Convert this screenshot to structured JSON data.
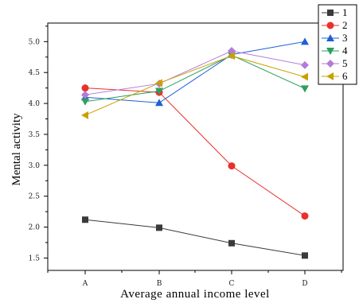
{
  "chart_data": {
    "type": "line",
    "xlabel": "Average annual income level",
    "ylabel": "Mental activity",
    "categories": [
      "A",
      "B",
      "C",
      "D"
    ],
    "ylim": [
      1.3,
      5.3
    ],
    "yticks": [
      "1.5",
      "2.0",
      "2.5",
      "3.0",
      "3.5",
      "4.0",
      "4.5",
      "5.0"
    ],
    "legend_position": "top-right",
    "series": [
      {
        "name": "1",
        "color": "#3a3a3a",
        "marker": "square",
        "values": [
          2.12,
          1.99,
          1.74,
          1.54
        ]
      },
      {
        "name": "2",
        "color": "#e8312b",
        "marker": "circle",
        "values": [
          4.25,
          4.18,
          2.99,
          2.18
        ]
      },
      {
        "name": "3",
        "color": "#1f5fd6",
        "marker": "triangle-up",
        "values": [
          4.1,
          4.01,
          4.79,
          5.0
        ]
      },
      {
        "name": "4",
        "color": "#2e9e5f",
        "marker": "triangle-down",
        "values": [
          4.03,
          4.2,
          4.78,
          4.24
        ]
      },
      {
        "name": "5",
        "color": "#b57bd9",
        "marker": "diamond",
        "values": [
          4.14,
          4.32,
          4.85,
          4.62
        ]
      },
      {
        "name": "6",
        "color": "#c9a000",
        "marker": "triangle-left",
        "values": [
          3.81,
          4.33,
          4.77,
          4.43
        ]
      }
    ]
  }
}
